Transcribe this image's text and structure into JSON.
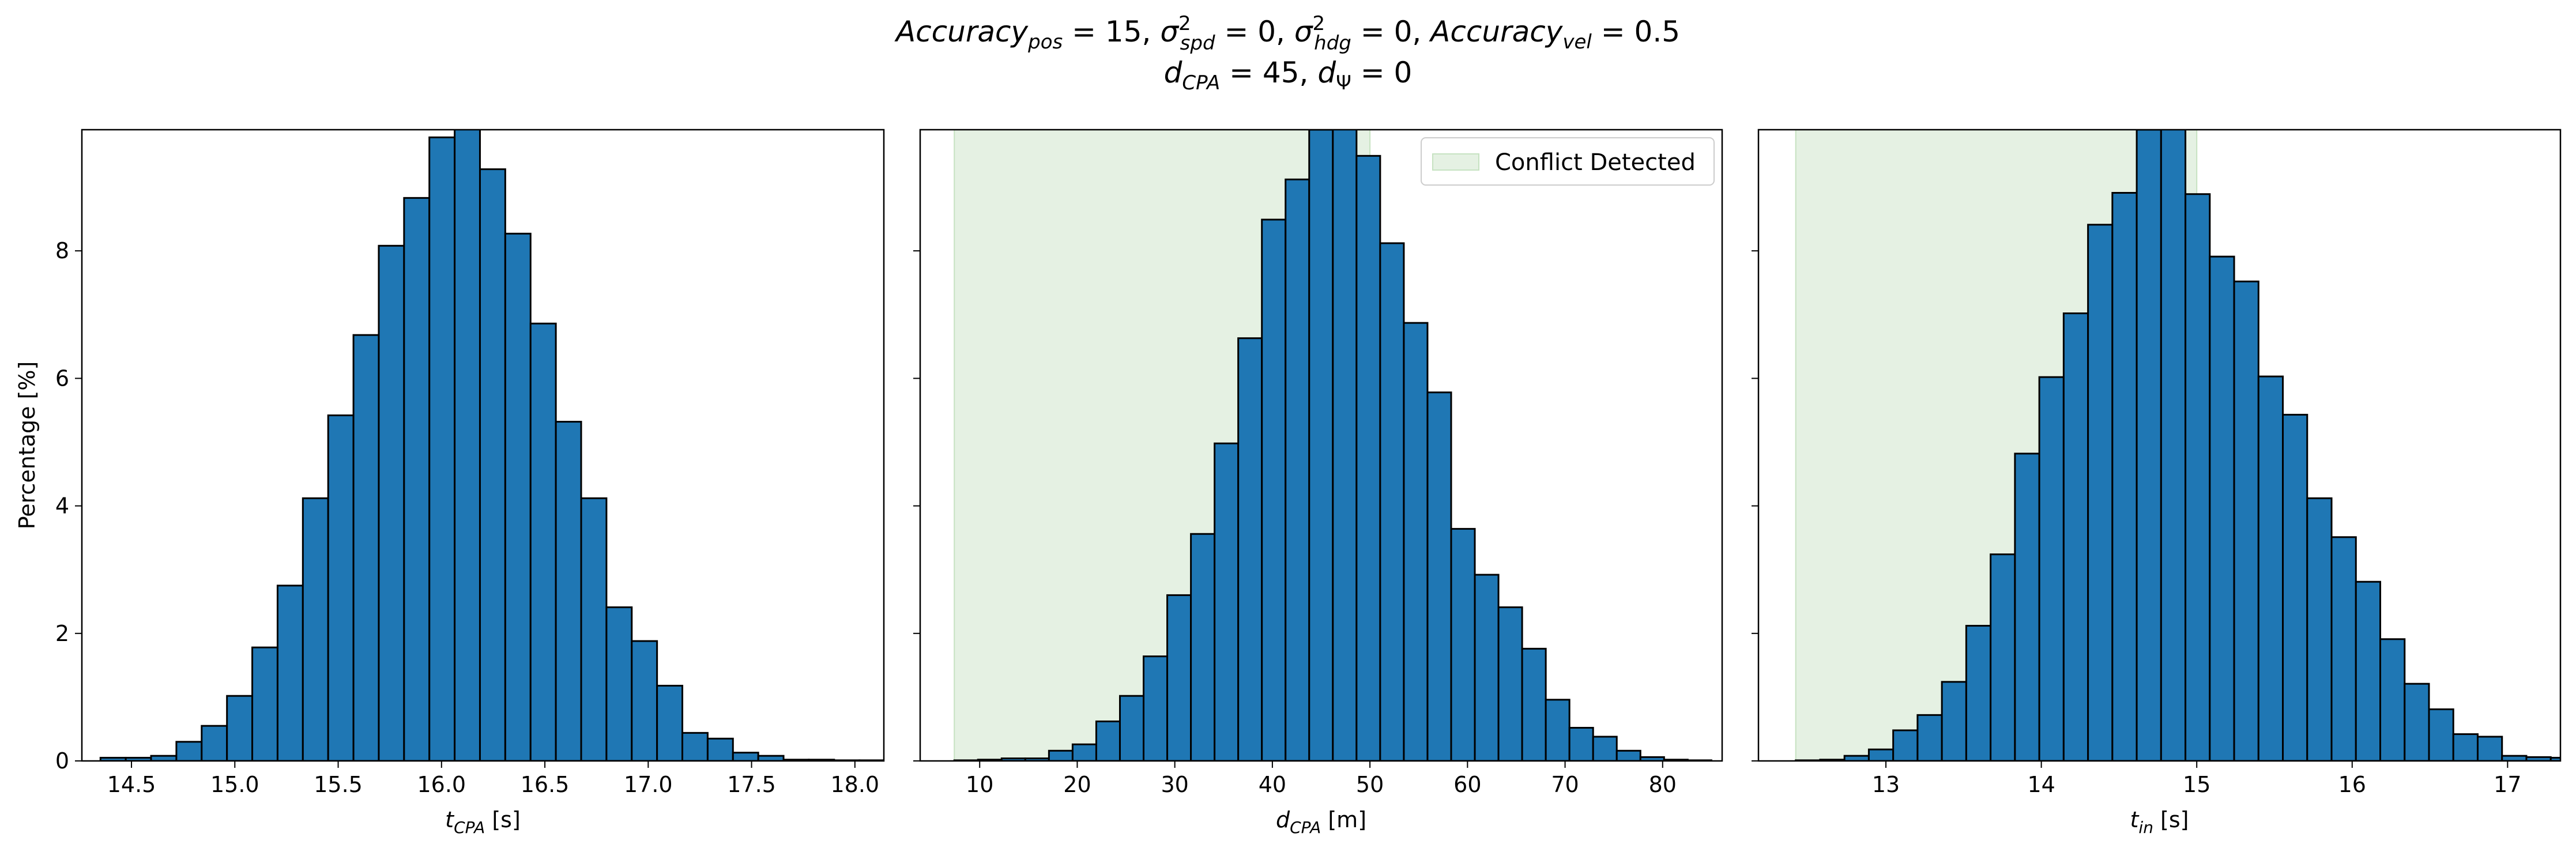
{
  "figure": {
    "title_line1": "Accuracy_pos = 15, σ²_spd = 0, σ²_hdg = 0, Accuracy_vel = 0.5",
    "title_line2": "d_CPA = 45, d_Ψ = 0"
  },
  "colors": {
    "bar": "#1f77b4",
    "bar_edge": "#000000",
    "conflict_region": "#e5f1e3",
    "conflict_region_edge": "#c6e2c1"
  },
  "chart_data": [
    {
      "type": "bar",
      "subtype": "histogram",
      "xlabel_symbol": "t",
      "xlabel_sub": "CPA",
      "xlabel_unit": "[s]",
      "ylabel": "Percentage [%]",
      "xlim": [
        14.26,
        18.14
      ],
      "ylim": [
        0,
        9.9
      ],
      "xticks": [
        14.5,
        15.0,
        15.5,
        16.0,
        16.5,
        17.0,
        17.5,
        18.0
      ],
      "xtick_labels": [
        "14.5",
        "15.0",
        "15.5",
        "16.0",
        "16.5",
        "17.0",
        "17.5",
        "18.0"
      ],
      "yticks": [
        0,
        2,
        4,
        6,
        8
      ],
      "ytick_labels": [
        "0",
        "2",
        "4",
        "6",
        "8"
      ],
      "bin_start": 14.35,
      "bin_width": 0.1224,
      "values": [
        0.05,
        0.05,
        0.08,
        0.3,
        0.55,
        1.02,
        1.78,
        2.75,
        4.12,
        5.42,
        6.68,
        8.08,
        8.83,
        9.78,
        10.02,
        9.28,
        8.27,
        6.86,
        5.32,
        4.12,
        2.41,
        1.88,
        1.18,
        0.44,
        0.35,
        0.13,
        0.08,
        0.02,
        0.02,
        0.01,
        0.01
      ],
      "conflict_region": null,
      "legend": null
    },
    {
      "type": "bar",
      "subtype": "histogram",
      "xlabel_symbol": "d",
      "xlabel_sub": "CPA",
      "xlabel_unit": "[m]",
      "xlim": [
        3.9,
        86.1
      ],
      "ylim": [
        0,
        9.9
      ],
      "xticks": [
        10,
        20,
        30,
        40,
        50,
        60,
        70,
        80
      ],
      "xtick_labels": [
        "10",
        "20",
        "30",
        "40",
        "50",
        "60",
        "70",
        "80"
      ],
      "yticks": [
        0,
        2,
        4,
        6,
        8
      ],
      "bin_start": 7.4,
      "bin_width": 2.425,
      "values": [
        0.01,
        0.02,
        0.04,
        0.04,
        0.16,
        0.26,
        0.62,
        1.02,
        1.64,
        2.6,
        3.56,
        4.98,
        6.63,
        8.49,
        9.12,
        9.9,
        10.43,
        9.49,
        8.12,
        6.87,
        5.78,
        3.64,
        2.92,
        2.41,
        1.76,
        0.96,
        0.52,
        0.38,
        0.16,
        0.06,
        0.02,
        0.01
      ],
      "conflict_region": [
        7.4,
        50.0
      ],
      "legend": {
        "label": "Conflict Detected",
        "position": "top-right"
      }
    },
    {
      "type": "bar",
      "subtype": "histogram",
      "xlabel_symbol": "t",
      "xlabel_sub": "in",
      "xlabel_unit": "[s]",
      "xlim": [
        12.18,
        17.34
      ],
      "ylim": [
        0,
        9.9
      ],
      "xticks": [
        13,
        14,
        15,
        16,
        17
      ],
      "xtick_labels": [
        "13",
        "14",
        "15",
        "16",
        "17"
      ],
      "yticks": [
        0,
        2,
        4,
        6,
        8
      ],
      "bin_start": 12.42,
      "bin_width": 0.1567,
      "values": [
        0.01,
        0.02,
        0.08,
        0.18,
        0.48,
        0.72,
        1.24,
        2.12,
        3.24,
        4.82,
        6.02,
        7.02,
        8.41,
        8.91,
        9.9,
        10.02,
        8.89,
        7.91,
        7.52,
        6.03,
        5.43,
        4.12,
        3.51,
        2.81,
        1.91,
        1.21,
        0.81,
        0.42,
        0.38,
        0.08,
        0.06,
        0.05
      ],
      "conflict_region": [
        12.42,
        15.0
      ],
      "legend": null
    }
  ]
}
